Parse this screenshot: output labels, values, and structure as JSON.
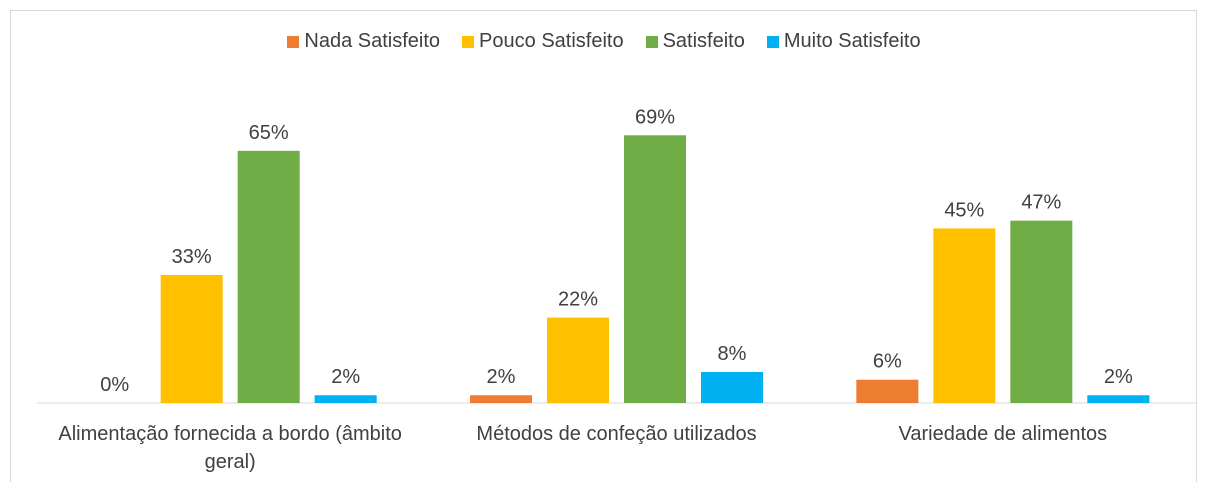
{
  "chart_data": {
    "type": "bar",
    "categories": [
      "Alimentação fornecida a bordo (âmbito geral)",
      "Métodos de confeção utilizados",
      "Variedade de alimentos"
    ],
    "series": [
      {
        "name": "Nada Satisfeito",
        "color": "#ed7d31",
        "values": [
          0,
          2,
          6
        ],
        "value_labels": [
          "0%",
          "2%",
          "6%"
        ]
      },
      {
        "name": "Pouco Satisfeito",
        "color": "#ffc000",
        "values": [
          33,
          22,
          45
        ],
        "value_labels": [
          "33%",
          "22%",
          "45%"
        ]
      },
      {
        "name": "Satisfeito",
        "color": "#70ad47",
        "values": [
          65,
          69,
          47
        ],
        "value_labels": [
          "65%",
          "69%",
          "47%"
        ]
      },
      {
        "name": "Muito Satisfeito",
        "color": "#00b0f0",
        "values": [
          2,
          8,
          2
        ],
        "value_labels": [
          "2%",
          "8%",
          "2%"
        ]
      }
    ],
    "legend": "top"
  }
}
